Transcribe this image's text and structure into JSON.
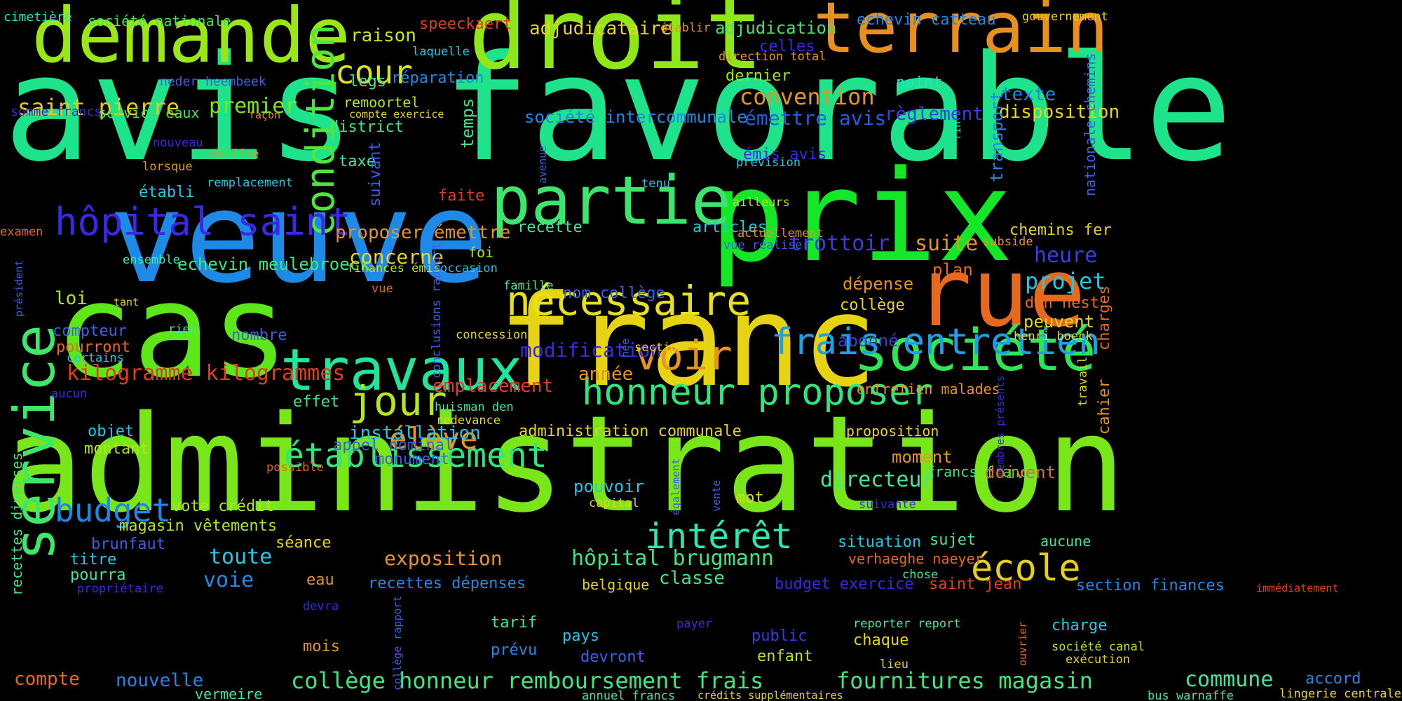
{
  "words": [
    {
      "text": "avis favorable",
      "color": "#1ee38a"
    },
    {
      "text": "administration",
      "color": "#78e619"
    },
    {
      "text": "veuve",
      "color": "#1e8ae6"
    },
    {
      "text": "franc",
      "color": "#e6d414"
    },
    {
      "text": "prix",
      "color": "#14e628"
    },
    {
      "text": "cas",
      "color": "#5de619"
    },
    {
      "text": "droit",
      "color": "#8fe619"
    },
    {
      "text": "demande",
      "color": "#9be619"
    },
    {
      "text": "terrain",
      "color": "#e6901e"
    },
    {
      "text": "service",
      "color": "#3fe66a"
    },
    {
      "text": "partie",
      "color": "#3ce66e"
    },
    {
      "text": "rue",
      "color": "#e6691e"
    },
    {
      "text": "société",
      "color": "#2ee655"
    },
    {
      "text": "travaux",
      "color": "#21e69a"
    },
    {
      "text": "condition",
      "color": "#4fe63c"
    },
    {
      "text": "hôpital saint",
      "color": "#3a28e6"
    },
    {
      "text": "nécessaire",
      "color": "#e6e01e"
    },
    {
      "text": "voir",
      "color": "#e6941e"
    },
    {
      "text": "frais entretien",
      "color": "#1ea0e6"
    },
    {
      "text": "honneur proposer",
      "color": "#2ee67e"
    },
    {
      "text": "établissement",
      "color": "#2ee67e"
    },
    {
      "text": "intérêt",
      "color": "#2ee6b0"
    },
    {
      "text": "école",
      "color": "#e6d01e"
    },
    {
      "text": "jour",
      "color": "#b4e619"
    },
    {
      "text": "budget",
      "color": "#1e88e6"
    },
    {
      "text": "élève",
      "color": "#e6941e"
    },
    {
      "text": "cour",
      "color": "#d8e619"
    },
    {
      "text": "saint pierre",
      "color": "#e6c81e"
    },
    {
      "text": "premier",
      "color": "#7ee61e"
    },
    {
      "text": "service eaux",
      "color": "#3ee65a"
    },
    {
      "text": "somme francs",
      "color": "#3a28e6"
    },
    {
      "text": "société nationale",
      "color": "#3ee65a"
    },
    {
      "text": "cimetière",
      "color": "#1ee6c8"
    },
    {
      "text": "neder heembeek",
      "color": "#3a60e6"
    },
    {
      "text": "raison",
      "color": "#c6e619"
    },
    {
      "text": "speeckaert",
      "color": "#e63c1e"
    },
    {
      "text": "adjudicataire",
      "color": "#e6d41e"
    },
    {
      "text": "adjudication",
      "color": "#3ee66e"
    },
    {
      "text": "celles",
      "color": "#3a28e6"
    },
    {
      "text": "echevin catteau",
      "color": "#1e8ae6"
    },
    {
      "text": "gouvernement",
      "color": "#e6c81e"
    },
    {
      "text": "laquelle",
      "color": "#1ec8e6"
    },
    {
      "text": "établir",
      "color": "#e6941e"
    },
    {
      "text": "direction total",
      "color": "#e6941e"
    },
    {
      "text": "dernier",
      "color": "#9be619"
    },
    {
      "text": "convention",
      "color": "#e6941e"
    },
    {
      "text": "legs",
      "color": "#3ee6a0"
    },
    {
      "text": "réparation",
      "color": "#1e8ae6"
    },
    {
      "text": "remoortel",
      "color": "#b4e619"
    },
    {
      "text": "compte exercice",
      "color": "#e6d41e"
    },
    {
      "text": "district",
      "color": "#3ee67e"
    },
    {
      "text": "société intercommunale",
      "color": "#1e8ae6"
    },
    {
      "text": "émettre avis",
      "color": "#1e60e6"
    },
    {
      "text": "point",
      "color": "#1ee6c8"
    },
    {
      "text": "règlement",
      "color": "#3a3ce6"
    },
    {
      "text": "texte",
      "color": "#1e8ae6"
    },
    {
      "text": "disposition",
      "color": "#e6d41e"
    },
    {
      "text": "façon",
      "color": "#e6941e"
    },
    {
      "text": "chiffre",
      "color": "#e6941e"
    },
    {
      "text": "nouveau",
      "color": "#3a28e6"
    },
    {
      "text": "lorsque",
      "color": "#e6941e"
    },
    {
      "text": "remplacement",
      "color": "#1ec8e6"
    },
    {
      "text": "établi",
      "color": "#1ec8e6"
    },
    {
      "text": "taxe",
      "color": "#3ee6a0"
    },
    {
      "text": "faite",
      "color": "#e63c1e"
    },
    {
      "text": "émis avis",
      "color": "#3a28e6"
    },
    {
      "text": "prévision",
      "color": "#1ec8e6"
    },
    {
      "text": "tenu",
      "color": "#1ec8e6"
    },
    {
      "text": "ailleurs",
      "color": "#b4e619"
    },
    {
      "text": "fin",
      "color": "#1ee6c8"
    },
    {
      "text": "transport",
      "color": "#1e8ae6"
    },
    {
      "text": "nationale chemins",
      "color": "#3a60e6"
    },
    {
      "text": "temps",
      "color": "#3ee67e"
    },
    {
      "text": "suivant",
      "color": "#3a60e6"
    },
    {
      "text": "avenue",
      "color": "#3a60e6"
    },
    {
      "text": "proposer émettre",
      "color": "#e6941e"
    },
    {
      "text": "recette",
      "color": "#3ee6a0"
    },
    {
      "text": "articles",
      "color": "#1ec8e6"
    },
    {
      "text": "actuellement",
      "color": "#e6941e"
    },
    {
      "text": "vue réaliser",
      "color": "#3a60e6"
    },
    {
      "text": "trottoir",
      "color": "#3a3ce6"
    },
    {
      "text": "suite",
      "color": "#e6941e"
    },
    {
      "text": "chemins fer",
      "color": "#e6d41e"
    },
    {
      "text": "heure",
      "color": "#3a3ce6"
    },
    {
      "text": "subside",
      "color": "#e6941e"
    },
    {
      "text": "examen",
      "color": "#e6691e"
    },
    {
      "text": "ensemble",
      "color": "#3ee6a0"
    },
    {
      "text": "echevin meulebroeck",
      "color": "#3ee67e"
    },
    {
      "text": "concerne",
      "color": "#e6d41e"
    },
    {
      "text": "foi",
      "color": "#b4e619"
    },
    {
      "text": "finances émis",
      "color": "#b4e619"
    },
    {
      "text": "occasion",
      "color": "#1ec8e6"
    },
    {
      "text": "famille",
      "color": "#3ee6a0"
    },
    {
      "text": "nom collège",
      "color": "#3a60e6"
    },
    {
      "text": "plan",
      "color": "#e6691e"
    },
    {
      "text": "dépense",
      "color": "#e6941e"
    },
    {
      "text": "projet",
      "color": "#1ec8e6"
    },
    {
      "text": "den nest",
      "color": "#e6691e"
    },
    {
      "text": "collège",
      "color": "#e6d41e"
    },
    {
      "text": "peuvent",
      "color": "#e6d41e"
    },
    {
      "text": "loi",
      "color": "#b4e619"
    },
    {
      "text": "tant",
      "color": "#e6d41e"
    },
    {
      "text": "vue",
      "color": "#e6691e"
    },
    {
      "text": "président",
      "color": "#3a60e6"
    },
    {
      "text": "compteur",
      "color": "#3a60e6"
    },
    {
      "text": "rien",
      "color": "#3ee6a0"
    },
    {
      "text": "pourront",
      "color": "#e6691e"
    },
    {
      "text": "certains",
      "color": "#1ec8e6"
    },
    {
      "text": "conclusions rapport",
      "color": "#3a60e6"
    },
    {
      "text": "nombre",
      "color": "#3a60e6"
    },
    {
      "text": "concession",
      "color": "#e6d41e"
    },
    {
      "text": "modification",
      "color": "#3a28e6"
    },
    {
      "text": "section",
      "color": "#e6d41e"
    },
    {
      "text": "abonné",
      "color": "#3a3ce6"
    },
    {
      "text": "henri boeck",
      "color": "#e6d41e"
    },
    {
      "text": "charges",
      "color": "#e6691e"
    },
    {
      "text": "kilogramme kilogrammes",
      "color": "#e63c1e"
    },
    {
      "text": "année",
      "color": "#e6941e"
    },
    {
      "text": "née",
      "color": "#3a60e6"
    },
    {
      "text": "emplacement",
      "color": "#e63c1e"
    },
    {
      "text": "aucun",
      "color": "#3a28e6"
    },
    {
      "text": "effet",
      "color": "#3ee67e"
    },
    {
      "text": "huisman den",
      "color": "#3ee6a0"
    },
    {
      "text": "redevance",
      "color": "#e6d41e"
    },
    {
      "text": "entretien malades",
      "color": "#e6941e"
    },
    {
      "text": "travail",
      "color": "#e6d41e"
    },
    {
      "text": "cahier",
      "color": "#e6941e"
    },
    {
      "text": "objet",
      "color": "#1ec8e6"
    },
    {
      "text": "installation",
      "color": "#1ec8e6"
    },
    {
      "text": "administration communale",
      "color": "#e6d41e"
    },
    {
      "text": "proposition",
      "color": "#e6d41e"
    },
    {
      "text": "montant",
      "color": "#b4e619"
    },
    {
      "text": "appel nominal",
      "color": "#3a60e6"
    },
    {
      "text": "monument",
      "color": "#3a60e6"
    },
    {
      "text": "moment",
      "color": "#e6941e"
    },
    {
      "text": "membres présents",
      "color": "#3a28e6"
    },
    {
      "text": "francs francs",
      "color": "#3ee67e"
    },
    {
      "text": "doivent",
      "color": "#e6691e"
    },
    {
      "text": "possible",
      "color": "#e6691e"
    },
    {
      "text": "directeur",
      "color": "#3ee6a0"
    },
    {
      "text": "pouvoir",
      "color": "#1ec8e6"
    },
    {
      "text": "capital",
      "color": "#e6d41e"
    },
    {
      "text": "mot",
      "color": "#e6d41e"
    },
    {
      "text": "suivante",
      "color": "#3a28e6"
    },
    {
      "text": "également",
      "color": "#3a60e6"
    },
    {
      "text": "recettes diverses",
      "color": "#3ee67e"
    },
    {
      "text": "vote crédit",
      "color": "#b4e619"
    },
    {
      "text": "vente",
      "color": "#3a60e6"
    },
    {
      "text": "brunfaut",
      "color": "#3a60e6"
    },
    {
      "text": "magasin vêtements",
      "color": "#b4e619"
    },
    {
      "text": "séance",
      "color": "#e6d41e"
    },
    {
      "text": "situation",
      "color": "#1ec8e6"
    },
    {
      "text": "sujet",
      "color": "#3ee6a0"
    },
    {
      "text": "aucune",
      "color": "#3ee6a0"
    },
    {
      "text": "toute",
      "color": "#1ec8e6"
    },
    {
      "text": "titre",
      "color": "#1ec8e6"
    },
    {
      "text": "exposition",
      "color": "#e6941e"
    },
    {
      "text": "hôpital brugmann",
      "color": "#3ee67e"
    },
    {
      "text": "verhaeghe naeyer",
      "color": "#e6691e"
    },
    {
      "text": "pourra",
      "color": "#3ee6a0"
    },
    {
      "text": "propriétaire",
      "color": "#3a28e6"
    },
    {
      "text": "voie",
      "color": "#1e8ae6"
    },
    {
      "text": "eau",
      "color": "#e6941e"
    },
    {
      "text": "recettes dépenses",
      "color": "#1e8ae6"
    },
    {
      "text": "belgique",
      "color": "#e6d41e"
    },
    {
      "text": "classe",
      "color": "#3ee67e"
    },
    {
      "text": "budget exercice",
      "color": "#3a28e6"
    },
    {
      "text": "saint jean",
      "color": "#e63c1e"
    },
    {
      "text": "chose",
      "color": "#3ee6a0"
    },
    {
      "text": "section finances",
      "color": "#1e8ae6"
    },
    {
      "text": "immédiatement",
      "color": "#e63c1e"
    },
    {
      "text": "devra",
      "color": "#3a28e6"
    },
    {
      "text": "tarif",
      "color": "#3ee6a0"
    },
    {
      "text": "pays",
      "color": "#1ec8e6"
    },
    {
      "text": "payer",
      "color": "#3a28e6"
    },
    {
      "text": "public",
      "color": "#3a3ce6"
    },
    {
      "text": "reporter report",
      "color": "#3ee6a0"
    },
    {
      "text": "chaque",
      "color": "#e6d41e"
    },
    {
      "text": "charge",
      "color": "#1ec8e6"
    },
    {
      "text": "société canal",
      "color": "#b4e619"
    },
    {
      "text": "mois",
      "color": "#e6941e"
    },
    {
      "text": "prévu",
      "color": "#1e8ae6"
    },
    {
      "text": "devront",
      "color": "#3a60e6"
    },
    {
      "text": "enfant",
      "color": "#b4e619"
    },
    {
      "text": "ouvrier",
      "color": "#e6691e"
    },
    {
      "text": "exécution",
      "color": "#e6d41e"
    },
    {
      "text": "collège rapport",
      "color": "#3a60e6"
    },
    {
      "text": "lieu",
      "color": "#e6d41e"
    },
    {
      "text": "compte",
      "color": "#e6691e"
    },
    {
      "text": "nouvelle",
      "color": "#1e8ae6"
    },
    {
      "text": "vermeire",
      "color": "#3ee6a0"
    },
    {
      "text": "collège honneur remboursement frais",
      "color": "#3ee67e"
    },
    {
      "text": "fournitures magasin",
      "color": "#3ee67e"
    },
    {
      "text": "commune",
      "color": "#3ee6a0"
    },
    {
      "text": "accord",
      "color": "#1e8ae6"
    },
    {
      "text": "annuel francs",
      "color": "#3ee6a0"
    },
    {
      "text": "crédits supplémentaires",
      "color": "#e6d41e"
    },
    {
      "text": "bus warnaffe",
      "color": "#3ee6a0"
    },
    {
      "text": "lingerie centrale",
      "color": "#e6d41e"
    }
  ]
}
